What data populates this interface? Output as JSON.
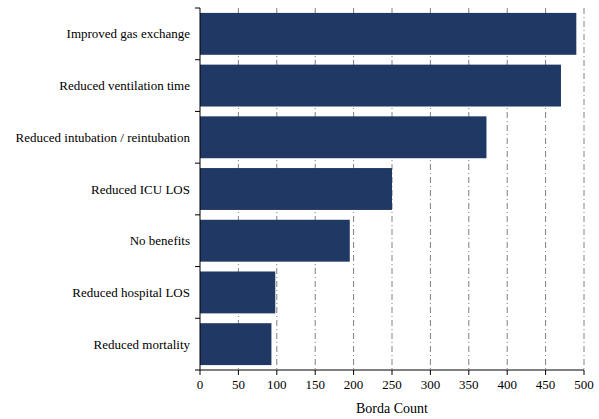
{
  "chart_data": {
    "type": "bar",
    "orientation": "horizontal",
    "categories": [
      "Improved gas exchange",
      "Reduced ventilation time",
      "Reduced intubation / reintubation",
      "Reduced ICU LOS",
      "No benefits",
      "Reduced hospital LOS",
      "Reduced mortality"
    ],
    "values": [
      490,
      470,
      373,
      250,
      195,
      98,
      93
    ],
    "color": "#1f3864",
    "x_label": "Borda Count",
    "xlim": [
      0,
      500
    ],
    "xticks": [
      0,
      50,
      100,
      150,
      200,
      250,
      300,
      350,
      400,
      450,
      500
    ],
    "grid": true
  }
}
